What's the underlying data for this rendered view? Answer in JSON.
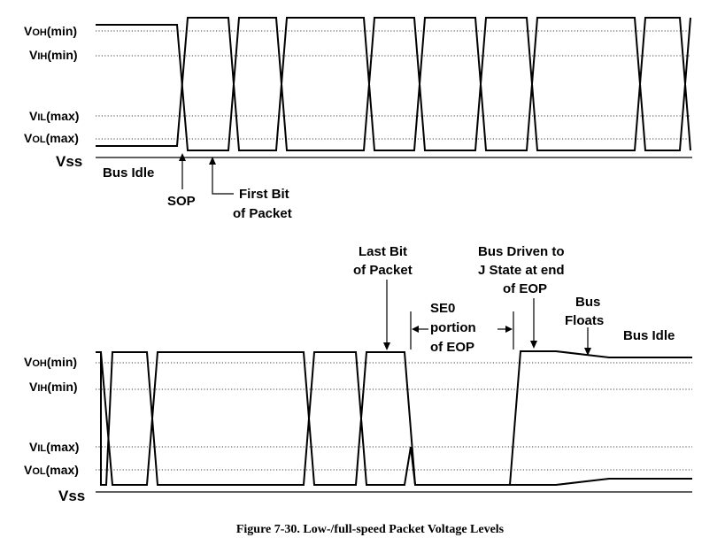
{
  "top_panel": {
    "levels": {
      "voh": {
        "main": "V",
        "sub": "OH",
        "rest": "(min)"
      },
      "vih": {
        "main": "V",
        "sub": "IH",
        "rest": "(min)"
      },
      "vil": {
        "main": "V",
        "sub": "IL",
        "rest": "(max)"
      },
      "vol": {
        "main": "V",
        "sub": "OL",
        "rest": "(max)"
      }
    },
    "vss": "Vss",
    "annotations": {
      "bus_idle": "Bus Idle",
      "sop": "SOP",
      "first_bit_line1": "First Bit",
      "first_bit_line2": "of Packet"
    }
  },
  "bottom_panel": {
    "levels": {
      "voh": {
        "main": "V",
        "sub": "OH",
        "rest": "(min)"
      },
      "vih": {
        "main": "V",
        "sub": "IH",
        "rest": "(min)"
      },
      "vil": {
        "main": "V",
        "sub": "IL",
        "rest": "(max)"
      },
      "vol": {
        "main": "V",
        "sub": "OL",
        "rest": "(max)"
      }
    },
    "vss": "Vss",
    "annotations": {
      "last_bit_line1": "Last Bit",
      "last_bit_line2": "of Packet",
      "se0_line1": "SE0",
      "se0_line2": "portion",
      "se0_line3": "of EOP",
      "bus_driven_line1": "Bus Driven to",
      "bus_driven_line2": "J State at end",
      "bus_driven_line3": "of EOP",
      "bus_floats_line1": "Bus",
      "bus_floats_line2": "Floats",
      "bus_idle": "Bus Idle"
    }
  },
  "caption": "Figure 7-30.  Low-/full-speed Packet Voltage Levels"
}
